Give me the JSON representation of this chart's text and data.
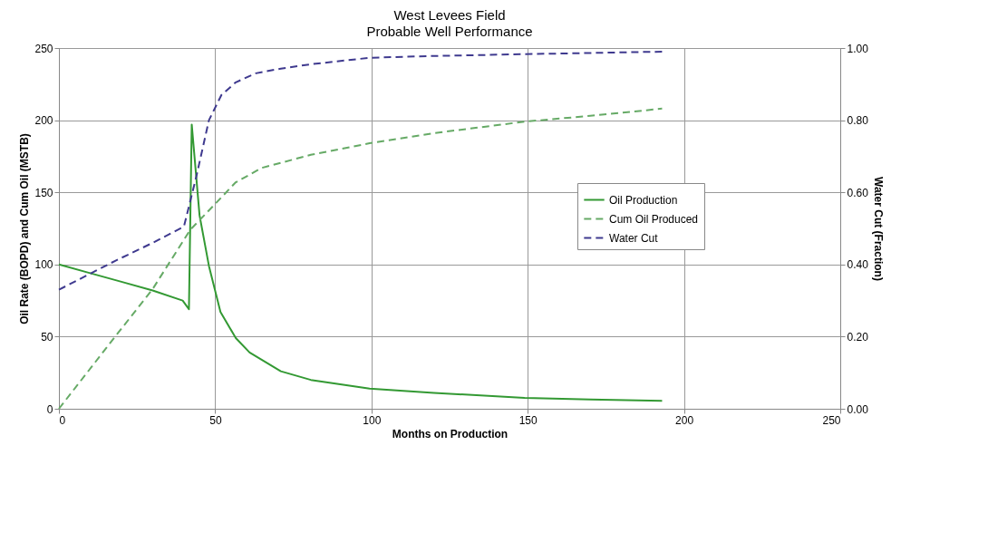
{
  "chart_data": {
    "type": "line",
    "title": "West Levees Field",
    "subtitle": "Probable Well Performance",
    "xlabel": "Months on Production",
    "ylabel": "Oil Rate (BOPD) and Cum Oil (MSTB)",
    "y2label": "Water Cut (Fraction)",
    "xlim": [
      0,
      250
    ],
    "xticks": [
      0,
      50,
      100,
      150,
      200,
      250
    ],
    "ylim": [
      0,
      250
    ],
    "yticks": [
      0,
      50,
      100,
      150,
      200,
      250
    ],
    "y2lim": [
      0,
      1
    ],
    "y2ticks": [
      {
        "value": 0,
        "label": "0.00"
      },
      {
        "value": 0.2,
        "label": "0.20"
      },
      {
        "value": 0.4,
        "label": "0.40"
      },
      {
        "value": 0.6,
        "label": "0.60"
      },
      {
        "value": 0.8,
        "label": "0.80"
      },
      {
        "value": 1,
        "label": "1.00"
      }
    ],
    "grid": true,
    "legend": "right",
    "marker": "none",
    "series": [
      {
        "name": "Oil Production",
        "color": "#339933",
        "line_style": "solid",
        "x": [
          0,
          10,
          20,
          30,
          39.6,
          41.6,
          42.5,
          45,
          48,
          51.7,
          56.6,
          61,
          71,
          80.6,
          99.4,
          120,
          149,
          170,
          193
        ],
        "values": [
          100,
          94,
          88,
          82,
          75,
          69,
          197,
          134,
          99,
          67,
          49,
          39,
          26,
          20,
          14,
          11,
          7.5,
          6.5,
          5.5
        ]
      },
      {
        "name": "Cum Oil Produced",
        "color": "#66aa66",
        "line_style": "dashed",
        "x": [
          0,
          18,
          30,
          42,
          50,
          56.6,
          65,
          80.6,
          99.4,
          120,
          149,
          170,
          193
        ],
        "values": [
          0,
          50,
          83,
          124,
          142,
          157,
          167,
          176,
          184,
          191,
          199,
          203,
          208
        ]
      },
      {
        "name": "Water Cut",
        "color": "#3f3a8f",
        "line_style": "dashed",
        "axis": "y2",
        "x": [
          0,
          18,
          30,
          40,
          44,
          48,
          52,
          56.6,
          63,
          71,
          80.6,
          99.4,
          120,
          149,
          193
        ],
        "values": [
          0.33,
          0.41,
          0.46,
          0.505,
          0.645,
          0.8,
          0.87,
          0.905,
          0.93,
          0.943,
          0.955,
          0.973,
          0.978,
          0.983,
          0.99
        ]
      }
    ]
  }
}
